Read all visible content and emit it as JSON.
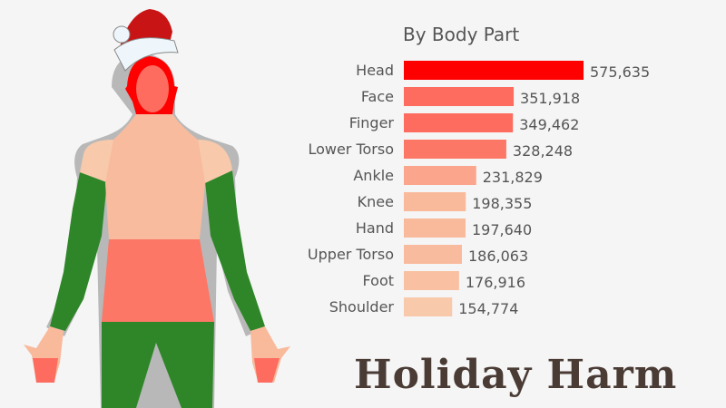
{
  "headline": "Holiday Harm",
  "chart_data": {
    "type": "bar",
    "orientation": "horizontal",
    "title": "By Body Part",
    "categories": [
      "Head",
      "Face",
      "Finger",
      "Lower Torso",
      "Ankle",
      "Knee",
      "Hand",
      "Upper Torso",
      "Foot",
      "Shoulder"
    ],
    "values": [
      575635,
      351918,
      349462,
      328248,
      231829,
      198355,
      197640,
      186063,
      176916,
      154774
    ],
    "value_labels": [
      "575,635",
      "351,918",
      "349,462",
      "328,248",
      "231,829",
      "198,355",
      "197,640",
      "186,063",
      "176,916",
      "154,774"
    ],
    "colors": [
      "#ff0000",
      "#fd6c5f",
      "#fd6c5f",
      "#fc7766",
      "#fba58c",
      "#f9b99b",
      "#f9b99b",
      "#f9bb9d",
      "#f9c0a2",
      "#f8c9ab"
    ],
    "xlim": [
      0,
      575635
    ],
    "grid": false,
    "legend": "none"
  },
  "figure_colors": {
    "head": "#ff0000",
    "face": "#fd6c5f",
    "upper_torso": "#f9bb9d",
    "shoulder": "#f8c9ab",
    "lower_torso": "#fc7766",
    "limbs": "#2e8629",
    "hand": "#f9b99b",
    "finger": "#fd6c5f"
  }
}
